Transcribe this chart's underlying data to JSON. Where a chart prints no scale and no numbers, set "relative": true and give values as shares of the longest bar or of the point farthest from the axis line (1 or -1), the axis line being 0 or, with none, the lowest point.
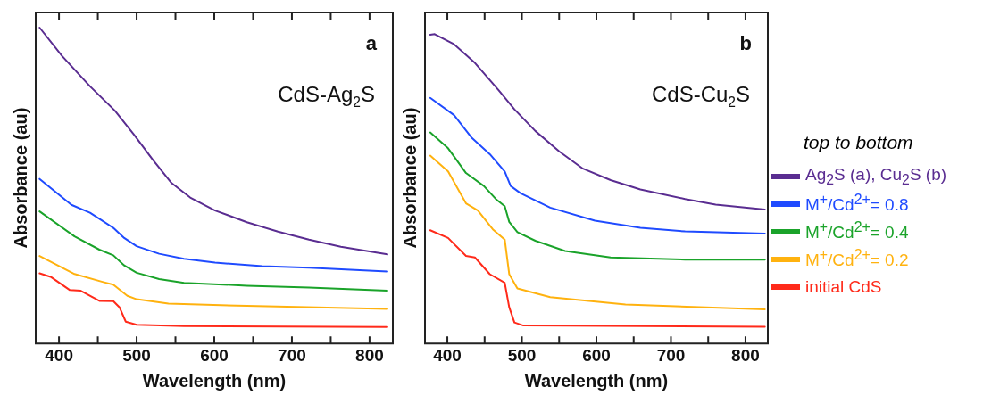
{
  "chart_data": [
    {
      "type": "line",
      "relative": true,
      "xlabel": "Wavelength (nm)",
      "ylabel": "Absorbance (au)",
      "annotations": [
        "CdS-Ag$_{2}$S",
        "a"
      ],
      "xlim": [
        370,
        830
      ],
      "xticks": [
        400,
        {
          "value": 450,
          "label": null
        },
        500,
        {
          "value": 550,
          "label": null
        },
        600,
        {
          "value": 650,
          "label": null
        },
        700,
        {
          "value": 750,
          "label": null
        },
        800
      ],
      "line_style": "solid",
      "marker": "none",
      "legend": false,
      "grid": false,
      "series": [
        {
          "color": "#5a2d91",
          "x": [
            375,
            404,
            440,
            472,
            496,
            521,
            545,
            569,
            601,
            642,
            682,
            722,
            763,
            823
          ],
          "values": [
            1.0,
            0.91,
            0.814,
            0.737,
            0.663,
            0.581,
            0.508,
            0.462,
            0.421,
            0.384,
            0.354,
            0.329,
            0.306,
            0.282
          ]
        },
        {
          "color": "#1f4bff",
          "x": [
            375,
            416,
            440,
            470,
            484,
            500,
            529,
            561,
            601,
            662,
            722,
            823
          ],
          "values": [
            0.521,
            0.439,
            0.414,
            0.366,
            0.334,
            0.308,
            0.284,
            0.268,
            0.256,
            0.245,
            0.24,
            0.228
          ]
        },
        {
          "color": "#1aa32a",
          "x": [
            375,
            420,
            452,
            470,
            484,
            500,
            529,
            561,
            642,
            722,
            823
          ],
          "values": [
            0.418,
            0.339,
            0.297,
            0.279,
            0.247,
            0.224,
            0.204,
            0.192,
            0.183,
            0.177,
            0.167
          ]
        },
        {
          "color": "#ffb20f",
          "x": [
            375,
            420,
            456,
            470,
            488,
            500,
            541,
            642,
            823
          ],
          "values": [
            0.277,
            0.22,
            0.195,
            0.186,
            0.151,
            0.14,
            0.126,
            0.119,
            0.109
          ]
        },
        {
          "color": "#ff2a1a",
          "x": [
            375,
            390,
            414,
            428,
            452,
            470,
            478,
            486,
            500,
            561,
            823
          ],
          "values": [
            0.222,
            0.21,
            0.169,
            0.167,
            0.135,
            0.134,
            0.114,
            0.069,
            0.059,
            0.055,
            0.052
          ]
        }
      ]
    },
    {
      "type": "line",
      "relative": true,
      "xlabel": "Wavelength (nm)",
      "ylabel": "Absorbance (au)",
      "annotations": [
        "CdS-Cu$_{2}$S",
        "b"
      ],
      "xlim": [
        370,
        830
      ],
      "xticks": [
        400,
        {
          "value": 450,
          "label": null
        },
        500,
        {
          "value": 550,
          "label": null
        },
        600,
        {
          "value": 650,
          "label": null
        },
        700,
        {
          "value": 750,
          "label": null
        },
        800
      ],
      "line_style": "solid",
      "marker": "none",
      "legend": "right",
      "legend_title": "top to bottom",
      "grid": false,
      "series": [
        {
          "name": "Ag$_{2}$S (a), Cu$_{2}$S (b)",
          "color": "#5a2d91",
          "x": [
            377,
            383,
            409,
            437,
            469,
            490,
            518,
            550,
            582,
            619,
            659,
            719,
            760,
            826
          ],
          "values": [
            0.998,
            1.0,
            0.967,
            0.907,
            0.818,
            0.757,
            0.687,
            0.621,
            0.565,
            0.528,
            0.498,
            0.467,
            0.449,
            0.433
          ]
        },
        {
          "name": "M$^{+}$/Cd$^{2+}$= 0.8",
          "color": "#1f4bff",
          "x": [
            377,
            409,
            433,
            457,
            477,
            485,
            498,
            538,
            598,
            659,
            719,
            826
          ],
          "values": [
            0.794,
            0.738,
            0.664,
            0.612,
            0.556,
            0.509,
            0.486,
            0.439,
            0.397,
            0.374,
            0.362,
            0.355
          ]
        },
        {
          "name": "M$^{+}$/Cd$^{2+}$= 0.4",
          "color": "#1aa32a",
          "x": [
            377,
            401,
            425,
            449,
            465,
            477,
            483,
            494,
            518,
            558,
            619,
            719,
            826
          ],
          "values": [
            0.682,
            0.631,
            0.551,
            0.509,
            0.467,
            0.444,
            0.393,
            0.36,
            0.332,
            0.299,
            0.278,
            0.271,
            0.271
          ]
        },
        {
          "name": "M$^{+}$/Cd$^{2+}$= 0.2",
          "color": "#ffb20f",
          "x": [
            377,
            401,
            425,
            441,
            461,
            477,
            483,
            494,
            538,
            639,
            826
          ],
          "values": [
            0.607,
            0.556,
            0.453,
            0.43,
            0.369,
            0.336,
            0.224,
            0.178,
            0.15,
            0.126,
            0.11
          ]
        },
        {
          "name": "initial CdS",
          "color": "#ff2a1a",
          "x": [
            377,
            401,
            425,
            437,
            457,
            477,
            483,
            490,
            502,
            826
          ],
          "values": [
            0.366,
            0.341,
            0.283,
            0.278,
            0.224,
            0.196,
            0.117,
            0.068,
            0.058,
            0.054
          ]
        }
      ]
    }
  ]
}
